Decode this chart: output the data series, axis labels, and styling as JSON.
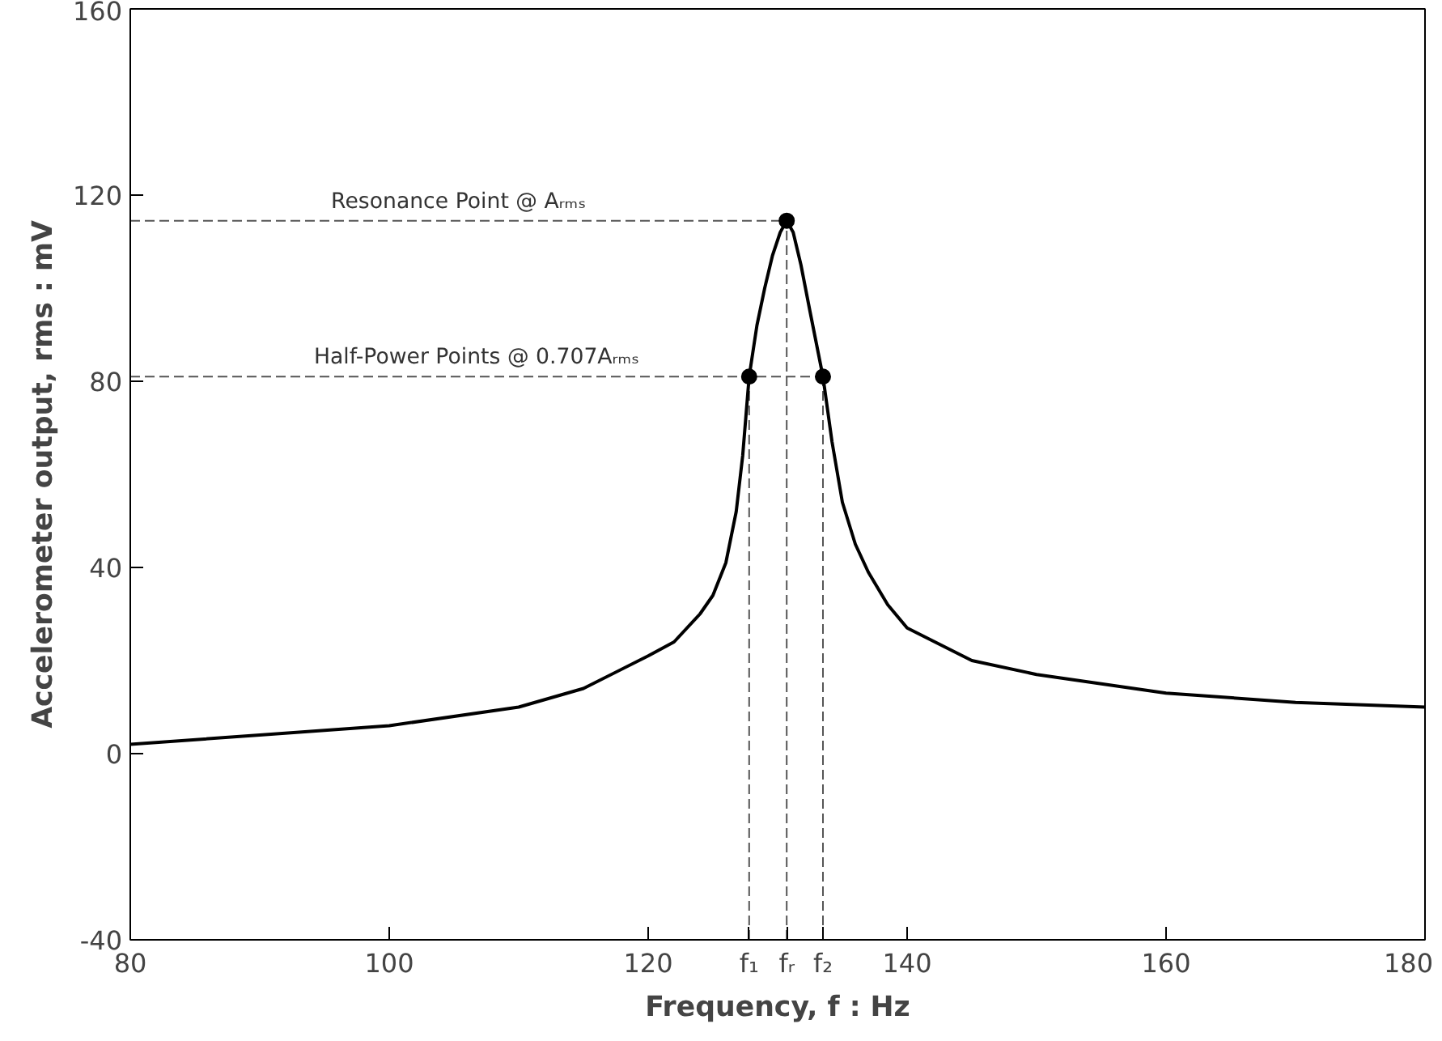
{
  "chart_data": {
    "type": "line",
    "xlabel": "Frequency, f : Hz",
    "ylabel": "Accelerometer output, rms : mV",
    "xlim": [
      80,
      180
    ],
    "ylim": [
      -40,
      160
    ],
    "xticks": [
      80,
      100,
      120,
      {
        "value": 127.8,
        "label": "f₁"
      },
      {
        "value": 130.7,
        "label": "fᵣ"
      },
      {
        "value": 133.5,
        "label": "f₂"
      },
      140,
      160,
      180
    ],
    "yticks": [
      -40,
      0,
      40,
      80,
      120,
      160
    ],
    "grid": false,
    "series": [
      {
        "color": "#000000",
        "marker": "none",
        "x": [
          80,
          90,
          100,
          110,
          115,
          120,
          122,
          124,
          125,
          126,
          126.8,
          127.3,
          127.8,
          128.4,
          129,
          129.6,
          130.2,
          130.7,
          131.2,
          131.8,
          132.5,
          133,
          133.5,
          134.2,
          135,
          136,
          137,
          138.5,
          140,
          145,
          150,
          160,
          170,
          180
        ],
        "values": [
          2,
          4,
          6,
          10,
          14,
          21,
          24,
          30,
          34,
          41,
          52,
          64,
          81,
          92,
          100,
          107,
          112,
          114.5,
          112,
          105,
          95,
          88,
          81,
          67,
          54,
          45,
          39,
          32,
          27,
          20,
          17,
          13,
          11,
          10
        ]
      },
      {
        "type": "scatter",
        "color": "#000000",
        "marker": "circle",
        "x": [
          127.8,
          130.7,
          133.5
        ],
        "values": [
          81,
          114.5,
          81
        ]
      }
    ],
    "ref_lines": [
      {
        "axis": "y",
        "value": 114.5,
        "label": "Resonance Point @ Aᵣₘₛ",
        "line_style": "dashed",
        "color": "#555555"
      },
      {
        "axis": "y",
        "value": 81,
        "label": "Half-Power Points @ 0.707Aᵣₘₛ",
        "line_style": "dashed",
        "color": "#555555"
      },
      {
        "axis": "x",
        "value": 127.8,
        "line_style": "dashed",
        "color": "#555555"
      },
      {
        "axis": "x",
        "value": 130.7,
        "line_style": "dashed",
        "color": "#555555"
      },
      {
        "axis": "x",
        "value": 133.5,
        "line_style": "dashed",
        "color": "#555555"
      }
    ]
  }
}
